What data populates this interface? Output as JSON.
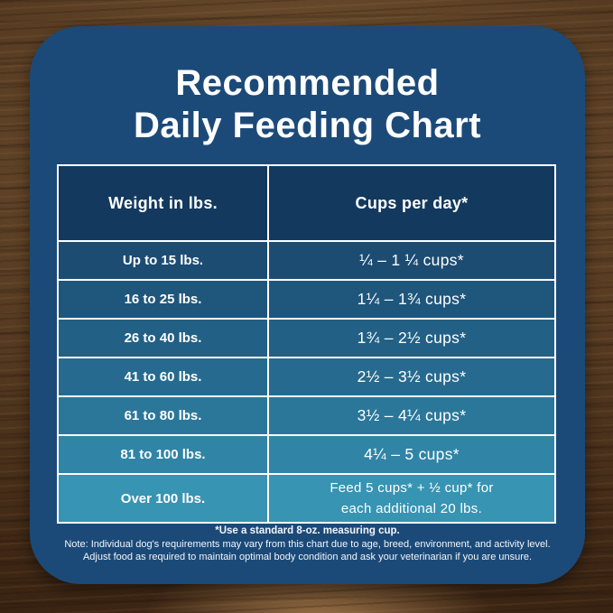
{
  "title": {
    "line1": "Recommended",
    "line2": "Daily Feeding Chart"
  },
  "table": {
    "col1_header": "Weight in lbs.",
    "col2_header": "Cups per day*",
    "rows": [
      {
        "weight": "Up to 15 lbs.",
        "cups": "¼ – 1 ¼ cups*"
      },
      {
        "weight": "16 to 25 lbs.",
        "cups": "1¼ – 1¾  cups*"
      },
      {
        "weight": "26 to 40 lbs.",
        "cups": "1¾ – 2½ cups*"
      },
      {
        "weight": "41 to 60 lbs.",
        "cups": "2½ – 3½ cups*"
      },
      {
        "weight": "61 to 80 lbs.",
        "cups": "3½ – 4¼ cups*"
      },
      {
        "weight": "81 to 100 lbs.",
        "cups": "4¼ – 5 cups*"
      },
      {
        "weight": "Over 100 lbs.",
        "cups": "Feed 5 cups* + ½ cup* for\neach additional 20 lbs."
      }
    ],
    "row_colors": [
      "#1D4C73",
      "#1F567C",
      "#226085",
      "#266B8F",
      "#2B779A",
      "#3084A6",
      "#3794B3"
    ],
    "header_color": "#13395F"
  },
  "footnotes": {
    "line1": "*Use a standard 8-oz. measuring cup.",
    "line2": "Note: Individual dog's requirements may vary from this chart due to age, breed, environment, and activity level.",
    "line3": "Adjust food as required to maintain optimal body condition and ask your veterinarian if you are unsure."
  },
  "colors": {
    "panel": "#1C4A78",
    "border": "#FFFFFF",
    "text": "#FFFFFF"
  }
}
